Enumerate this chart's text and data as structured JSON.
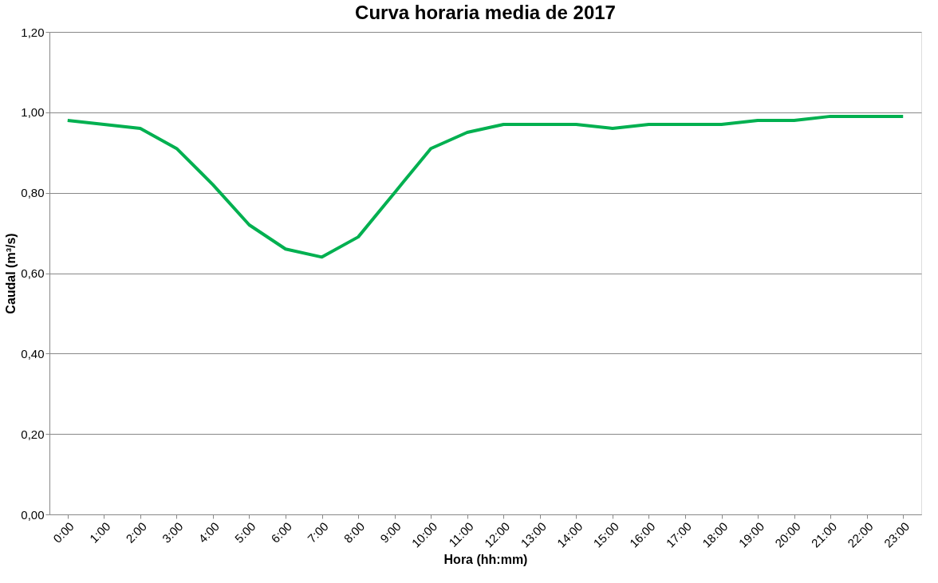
{
  "chart_data": {
    "type": "line",
    "title": "Curva horaria media de 2017",
    "xlabel": "Hora (hh:mm)",
    "ylabel": "Caudal (m³/s)",
    "categories": [
      "0:00",
      "1:00",
      "2:00",
      "3:00",
      "4:00",
      "5:00",
      "6:00",
      "7:00",
      "8:00",
      "9:00",
      "10:00",
      "11:00",
      "12:00",
      "13:00",
      "14:00",
      "15:00",
      "16:00",
      "17:00",
      "18:00",
      "19:00",
      "20:00",
      "21:00",
      "22:00",
      "23:00"
    ],
    "series": [
      {
        "color": "#00b050",
        "values": [
          0.98,
          0.97,
          0.96,
          0.91,
          0.82,
          0.72,
          0.66,
          0.64,
          0.69,
          0.8,
          0.91,
          0.95,
          0.97,
          0.97,
          0.97,
          0.96,
          0.97,
          0.97,
          0.97,
          0.98,
          0.98,
          0.99,
          0.99,
          0.99
        ]
      }
    ],
    "ylim": [
      0,
      1.2
    ],
    "yticks": [
      {
        "value": 0,
        "label": "0,00"
      },
      {
        "value": 0.2,
        "label": "0,20"
      },
      {
        "value": 0.4,
        "label": "0,40"
      },
      {
        "value": 0.6,
        "label": "0,60"
      },
      {
        "value": 0.8,
        "label": "0,80"
      },
      {
        "value": 1.0,
        "label": "1,00"
      },
      {
        "value": 1.2,
        "label": "1,20"
      }
    ],
    "grid": "y",
    "marker": "none",
    "line_style": "solid"
  }
}
